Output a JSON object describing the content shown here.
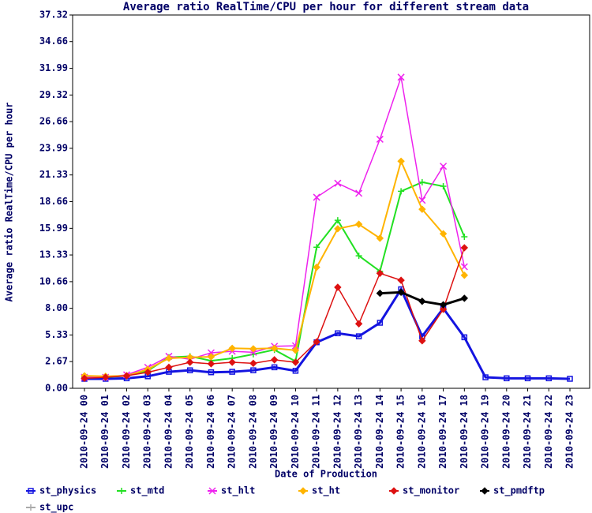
{
  "chart_data": {
    "type": "line",
    "title": "Average ratio RealTime/CPU per hour for different stream data",
    "x_label": "Date of Production",
    "y_label": "Average ratio RealTime/CPU per hour",
    "categories": [
      "2010-09-24 00",
      "2010-09-24 01",
      "2010-09-24 02",
      "2010-09-24 03",
      "2010-09-24 04",
      "2010-09-24 05",
      "2010-09-24 06",
      "2010-09-24 07",
      "2010-09-24 08",
      "2010-09-24 09",
      "2010-09-24 10",
      "2010-09-24 11",
      "2010-09-24 12",
      "2010-09-24 13",
      "2010-09-24 14",
      "2010-09-24 15",
      "2010-09-24 16",
      "2010-09-24 17",
      "2010-09-24 18",
      "2010-09-24 19",
      "2010-09-24 20",
      "2010-09-24 21",
      "2010-09-24 22",
      "2010-09-24 23"
    ],
    "ylim": [
      0,
      37.32
    ],
    "yticks": [
      {
        "value": 0,
        "label": "0.00"
      },
      2.67,
      5.33,
      {
        "value": 8,
        "label": "8.00"
      },
      10.66,
      13.33,
      15.99,
      18.66,
      21.33,
      23.99,
      26.66,
      29.32,
      31.99,
      34.66,
      37.32
    ],
    "grid": false,
    "legend": "bottom",
    "series": [
      {
        "name": "st_physics",
        "color": "#1414e0",
        "marker": "square",
        "line_width": 3,
        "values": [
          0.95,
          0.95,
          1.0,
          1.2,
          1.65,
          1.8,
          1.6,
          1.65,
          1.8,
          2.1,
          1.75,
          4.6,
          5.5,
          5.2,
          6.55,
          9.9,
          5.2,
          8.0,
          5.1,
          1.1,
          1.0,
          1.0,
          1.0,
          0.95
        ]
      },
      {
        "name": "st_mtd",
        "color": "#22e022",
        "marker": "plus",
        "line_width": 2,
        "values": [
          1.2,
          1.1,
          1.25,
          1.75,
          3.1,
          3.2,
          2.75,
          3.0,
          3.4,
          3.85,
          2.7,
          14.1,
          16.8,
          13.25,
          11.7,
          19.7,
          20.6,
          20.2,
          15.15,
          null,
          null,
          null,
          null,
          null
        ]
      },
      {
        "name": "st_hlt",
        "color": "#ee22ee",
        "marker": "cross",
        "line_width": 1.5,
        "values": [
          1.1,
          1.1,
          1.35,
          2.1,
          3.2,
          2.9,
          3.55,
          3.7,
          3.6,
          4.2,
          4.25,
          19.1,
          20.5,
          19.5,
          24.9,
          31.1,
          18.8,
          22.2,
          12.15,
          null,
          null,
          null,
          null,
          null
        ]
      },
      {
        "name": "st_ht",
        "color": "#ffb400",
        "marker": "diamond",
        "line_width": 2,
        "values": [
          1.25,
          1.2,
          1.25,
          1.9,
          3.0,
          3.1,
          3.15,
          4.0,
          3.95,
          4.0,
          3.8,
          12.1,
          15.95,
          16.4,
          15.0,
          22.7,
          17.9,
          15.45,
          11.3,
          null,
          null,
          null,
          null,
          null
        ]
      },
      {
        "name": "st_monitor",
        "color": "#dd1111",
        "marker": "diamond",
        "line_width": 1.5,
        "values": [
          1.0,
          1.1,
          1.25,
          1.6,
          2.1,
          2.6,
          2.45,
          2.6,
          2.5,
          2.85,
          2.6,
          4.65,
          10.1,
          6.45,
          11.5,
          10.8,
          4.75,
          7.9,
          14.05,
          null,
          null,
          null,
          null,
          null
        ]
      },
      {
        "name": "st_pmdftp",
        "color": "#000000",
        "marker": "diamond",
        "line_width": 3,
        "values": [
          null,
          null,
          null,
          null,
          null,
          null,
          null,
          null,
          null,
          null,
          null,
          null,
          null,
          null,
          9.5,
          9.6,
          8.7,
          8.35,
          9.0,
          null,
          null,
          null,
          null,
          null
        ]
      },
      {
        "name": "st_upc",
        "color": "#aaaaaa",
        "marker": "plus",
        "line_width": 1.5,
        "values": [
          null,
          null,
          null,
          null,
          null,
          null,
          null,
          null,
          null,
          null,
          null,
          null,
          null,
          null,
          null,
          null,
          null,
          null,
          null,
          null,
          null,
          null,
          null,
          null
        ]
      }
    ]
  }
}
